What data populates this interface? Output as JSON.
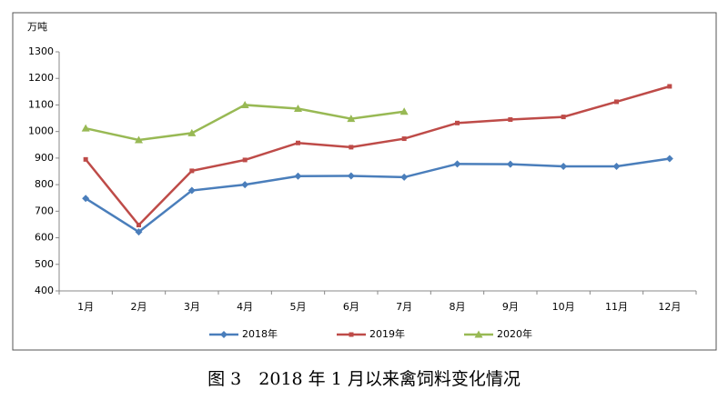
{
  "chart_data": {
    "type": "line",
    "title": "图 3　2018 年 1 月以来禽饲料变化情况",
    "y_label": "万吨",
    "categories": [
      "1月",
      "2月",
      "3月",
      "4月",
      "5月",
      "6月",
      "7月",
      "8月",
      "9月",
      "10月",
      "11月",
      "12月"
    ],
    "series": [
      {
        "name": "2018年",
        "color": "#4a7ebb",
        "marker": "diamond",
        "values": [
          748,
          622,
          778,
          800,
          832,
          833,
          828,
          878,
          877,
          869,
          869,
          898
        ]
      },
      {
        "name": "2019年",
        "color": "#be4b48",
        "marker": "square",
        "values": [
          895,
          648,
          852,
          893,
          957,
          941,
          973,
          1032,
          1045,
          1055,
          1112,
          1170
        ]
      },
      {
        "name": "2020年",
        "color": "#98b954",
        "marker": "triangle",
        "values": [
          1012,
          968,
          994,
          1100,
          1086,
          1048,
          1075,
          null,
          null,
          null,
          null,
          null
        ]
      }
    ],
    "ylim": [
      400,
      1300
    ],
    "yticks": [
      400,
      500,
      600,
      700,
      800,
      900,
      1000,
      1100,
      1200,
      1300
    ],
    "grid": false,
    "legend": "bottom"
  }
}
